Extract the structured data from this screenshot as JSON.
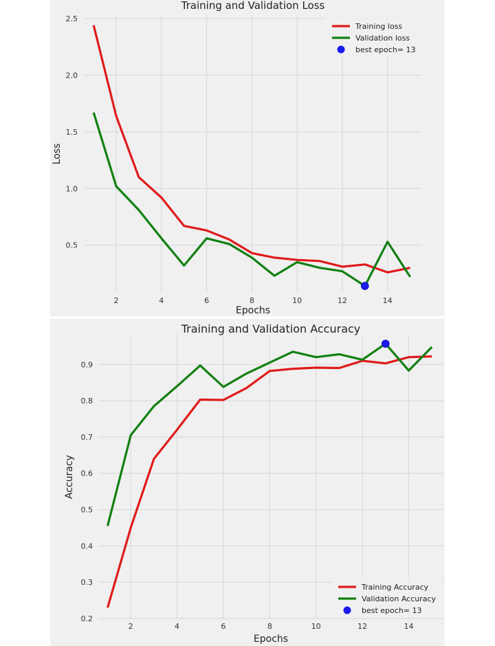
{
  "chart_data": [
    {
      "type": "line",
      "title": "Training and Validation Loss",
      "xlabel": "Epochs",
      "ylabel": "Loss",
      "xlim": [
        0.6,
        15.5
      ],
      "ylim": [
        0.08,
        2.53
      ],
      "xticks": [
        2,
        4,
        6,
        8,
        10,
        12,
        14
      ],
      "yticks": [
        0.5,
        1.0,
        1.5,
        2.0,
        2.5
      ],
      "ytick_labels": [
        "0.5",
        "1.0",
        "1.5",
        "2.0",
        "2.5"
      ],
      "grid": true,
      "legend_position": "top-right",
      "x": [
        1,
        2,
        3,
        4,
        5,
        6,
        7,
        8,
        9,
        10,
        11,
        12,
        13,
        14,
        15
      ],
      "series": [
        {
          "name": "Training loss",
          "color": "#e01b1b",
          "values": [
            2.44,
            1.64,
            1.1,
            0.92,
            0.67,
            0.63,
            0.55,
            0.43,
            0.39,
            0.37,
            0.36,
            0.31,
            0.33,
            0.26,
            0.3
          ]
        },
        {
          "name": "Validation loss",
          "color": "#128012",
          "values": [
            1.67,
            1.02,
            0.81,
            0.56,
            0.32,
            0.56,
            0.51,
            0.39,
            0.23,
            0.35,
            0.3,
            0.27,
            0.14,
            0.53,
            0.22
          ]
        }
      ],
      "best_point": {
        "name": "best epoch= 13",
        "color": "#1a1aee",
        "x": 13,
        "y": 0.14
      }
    },
    {
      "type": "line",
      "title": "Training and Validation Accuracy",
      "xlabel": "Epochs",
      "ylabel": "Accuracy",
      "xlim": [
        0.6,
        15.5
      ],
      "ylim": [
        0.2,
        0.98
      ],
      "xticks": [
        2,
        4,
        6,
        8,
        10,
        12,
        14
      ],
      "yticks": [
        0.2,
        0.3,
        0.4,
        0.5,
        0.6,
        0.7,
        0.8,
        0.9
      ],
      "ytick_labels": [
        "0.2",
        "0.3",
        "0.4",
        "0.5",
        "0.6",
        "0.7",
        "0.8",
        "0.9"
      ],
      "grid": true,
      "legend_position": "bottom-right",
      "x": [
        1,
        2,
        3,
        4,
        5,
        6,
        7,
        8,
        9,
        10,
        11,
        12,
        13,
        14,
        15
      ],
      "series": [
        {
          "name": "Training Accuracy",
          "color": "#e01b1b",
          "values": [
            0.23,
            0.45,
            0.64,
            0.72,
            0.803,
            0.802,
            0.835,
            0.882,
            0.888,
            0.891,
            0.89,
            0.91,
            0.903,
            0.92,
            0.922
          ]
        },
        {
          "name": "Validation Accuracy",
          "color": "#128012",
          "values": [
            0.455,
            0.705,
            0.785,
            0.84,
            0.897,
            0.838,
            0.875,
            0.905,
            0.935,
            0.92,
            0.928,
            0.913,
            0.957,
            0.883,
            0.948
          ]
        }
      ],
      "best_point": {
        "name": "best epoch= 13",
        "color": "#1a1aee",
        "x": 13,
        "y": 0.957
      }
    }
  ]
}
